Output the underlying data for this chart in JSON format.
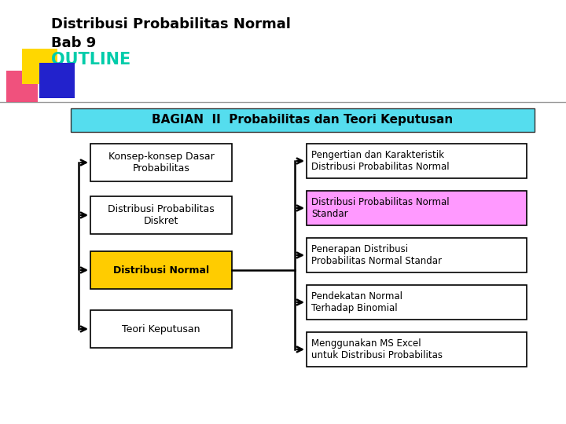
{
  "title_line1": "Distribusi Probabilitas Normal",
  "title_line2": "Bab 9",
  "subtitle": "OUTLINE",
  "header_text": "BAGIAN  II  Probabilitas dan Teori Keputusan",
  "header_bg": "#55DDEE",
  "header_text_color": "#000000",
  "left_boxes": [
    {
      "text": "Konsep-konsep Dasar\nProbabilitas",
      "bg": "#FFFFFF",
      "text_color": "#000000",
      "bold": false
    },
    {
      "text": "Distribusi Probabilitas\nDiskret",
      "bg": "#FFFFFF",
      "text_color": "#000000",
      "bold": false
    },
    {
      "text": "Distribusi Normal",
      "bg": "#FFCC00",
      "text_color": "#000000",
      "bold": true
    },
    {
      "text": "Teori Keputusan",
      "bg": "#FFFFFF",
      "text_color": "#000000",
      "bold": false
    }
  ],
  "right_boxes": [
    {
      "text": "Pengertian dan Karakteristik\nDistribusi Probabilitas Normal",
      "bg": "#FFFFFF",
      "text_color": "#000000"
    },
    {
      "text": "Distribusi Probabilitas Normal\nStandar",
      "bg": "#FF99FF",
      "text_color": "#000000"
    },
    {
      "text": "Penerapan Distribusi\nProbabilitas Normal Standar",
      "bg": "#FFFFFF",
      "text_color": "#000000"
    },
    {
      "text": "Pendekatan Normal\nTerhadap Binomial",
      "bg": "#FFFFFF",
      "text_color": "#000000"
    },
    {
      "text": "Menggunakan MS Excel\nuntuk Distribusi Probabilitas",
      "bg": "#FFFFFF",
      "text_color": "#000000"
    }
  ],
  "bg_color": "#FFFFFF",
  "title_color": "#000000",
  "outline_color": "#00CCAA",
  "deco_yellow": "#FFD700",
  "deco_blue": "#2222CC",
  "deco_red": "#EE3366",
  "arrow_color": "#000000"
}
